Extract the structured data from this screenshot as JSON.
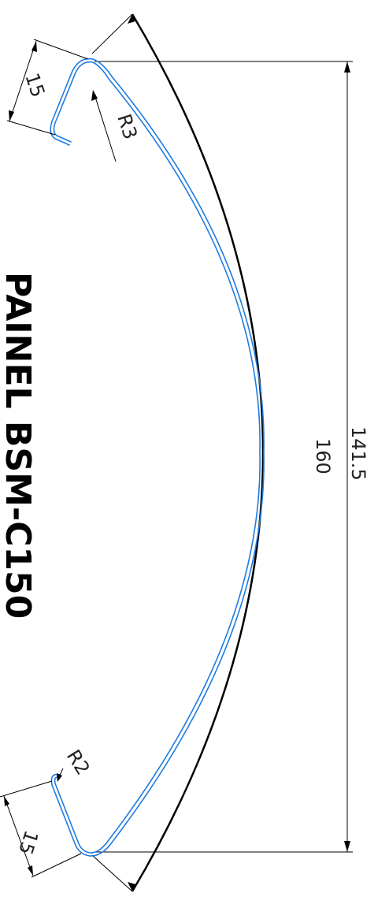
{
  "title": "PAINEL BSM-C150",
  "dimensions": {
    "lip_top": "15",
    "lip_bottom": "15",
    "radius_large": "R3",
    "radius_small": "R2",
    "height": "141.5",
    "arc_length": "160"
  },
  "colors": {
    "profile": "#1e7be0",
    "lines": "#000000",
    "background": "#ffffff"
  }
}
